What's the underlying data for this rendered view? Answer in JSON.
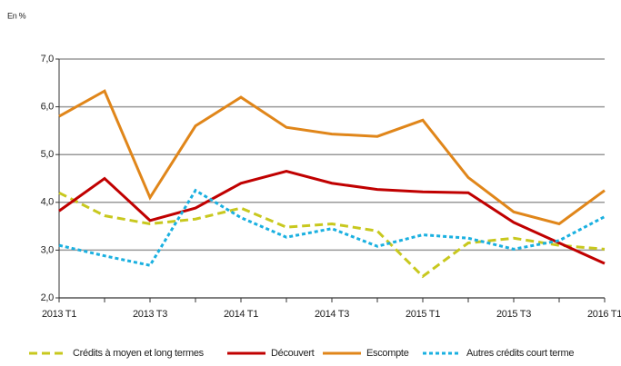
{
  "chart_data": {
    "type": "line",
    "y_label": "En %",
    "categories": [
      "2013 T1",
      null,
      "2013 T3",
      null,
      "2014 T1",
      null,
      "2014 T3",
      null,
      "2015 T1",
      null,
      "2015 T3",
      null,
      "2016 T1"
    ],
    "series": [
      {
        "name": "Crédits à moyen et long termes",
        "color": "#c8c81e",
        "line_style": "dashed",
        "values": [
          4.2,
          3.72,
          3.55,
          3.65,
          3.88,
          3.48,
          3.55,
          3.4,
          2.45,
          3.15,
          3.25,
          3.1,
          3.02
        ]
      },
      {
        "name": "Découvert",
        "color": "#c00000",
        "line_style": "solid",
        "values": [
          3.82,
          4.5,
          3.62,
          3.88,
          4.4,
          4.65,
          4.4,
          4.27,
          4.22,
          4.2,
          3.58,
          3.15,
          2.72
        ]
      },
      {
        "name": "Escompte",
        "color": "#e0861a",
        "line_style": "solid",
        "values": [
          5.8,
          6.33,
          4.1,
          5.6,
          6.2,
          5.57,
          5.43,
          5.38,
          5.72,
          4.52,
          3.8,
          3.55,
          4.25
        ]
      },
      {
        "name": "Autres crédits court terme",
        "color": "#1ab0e0",
        "line_style": "dotted",
        "values": [
          3.1,
          2.88,
          2.68,
          4.25,
          3.68,
          3.27,
          3.45,
          3.08,
          3.32,
          3.25,
          3.02,
          3.2,
          3.7
        ]
      }
    ],
    "ylim": [
      2,
      7
    ],
    "yticks": [
      {
        "value": 2,
        "label": "2,0"
      },
      {
        "value": 3,
        "label": "3,0"
      },
      {
        "value": 4,
        "label": "4,0"
      },
      {
        "value": 5,
        "label": "5,0"
      },
      {
        "value": 6,
        "label": "6,0"
      },
      {
        "value": 7,
        "label": "7,0"
      }
    ],
    "grid": true,
    "legend": "bottom"
  }
}
